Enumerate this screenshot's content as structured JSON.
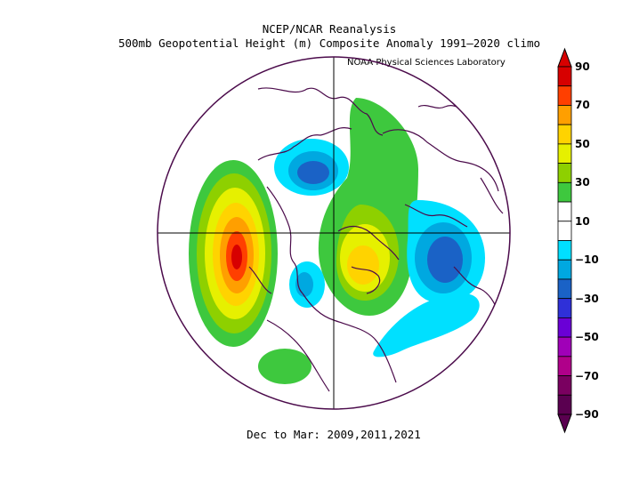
{
  "header": {
    "line1": "NCEP/NCAR Reanalysis",
    "line2": "500mb Geopotential Height (m) Composite Anomaly 1991–2020 climo",
    "credit": "NOAA Physical Sciences Laboratory"
  },
  "footer": {
    "period": "Dec to Mar: 2009,2011,2021"
  },
  "colorbar": {
    "labels": [
      "90",
      "70",
      "50",
      "30",
      "10",
      "−10",
      "−30",
      "−50",
      "−70",
      "−90"
    ],
    "colors": [
      "#d70000",
      "#ff3f00",
      "#ff9f00",
      "#ffd300",
      "#e6f000",
      "#8ed000",
      "#3ec83e",
      "#ffffff",
      "#ffffff",
      "#00e0ff",
      "#00a8e0",
      "#1a62c6",
      "#2f30d8",
      "#6a00d6",
      "#a000b8",
      "#b0008a",
      "#7a0060",
      "#5a0050"
    ]
  },
  "map": {
    "projection": "polar-stereographic",
    "colors": {
      "outline": "#4b0b4b",
      "green": "#3ec83e",
      "lightgreen": "#8ed000",
      "yellow": "#e6f000",
      "gold": "#ffd300",
      "orange": "#ff9f00",
      "darkorange": "#ff3f00",
      "red": "#d70000",
      "cyan": "#00e0ff",
      "midblue": "#00a8e0",
      "blue": "#1a62c6"
    },
    "features": [
      "positive-anomaly-north-pacific",
      "positive-anomaly-greenland",
      "negative-anomaly-siberia",
      "negative-anomaly-europe",
      "negative-anomaly-north-atlantic",
      "positive-anomaly-caribbean"
    ]
  }
}
